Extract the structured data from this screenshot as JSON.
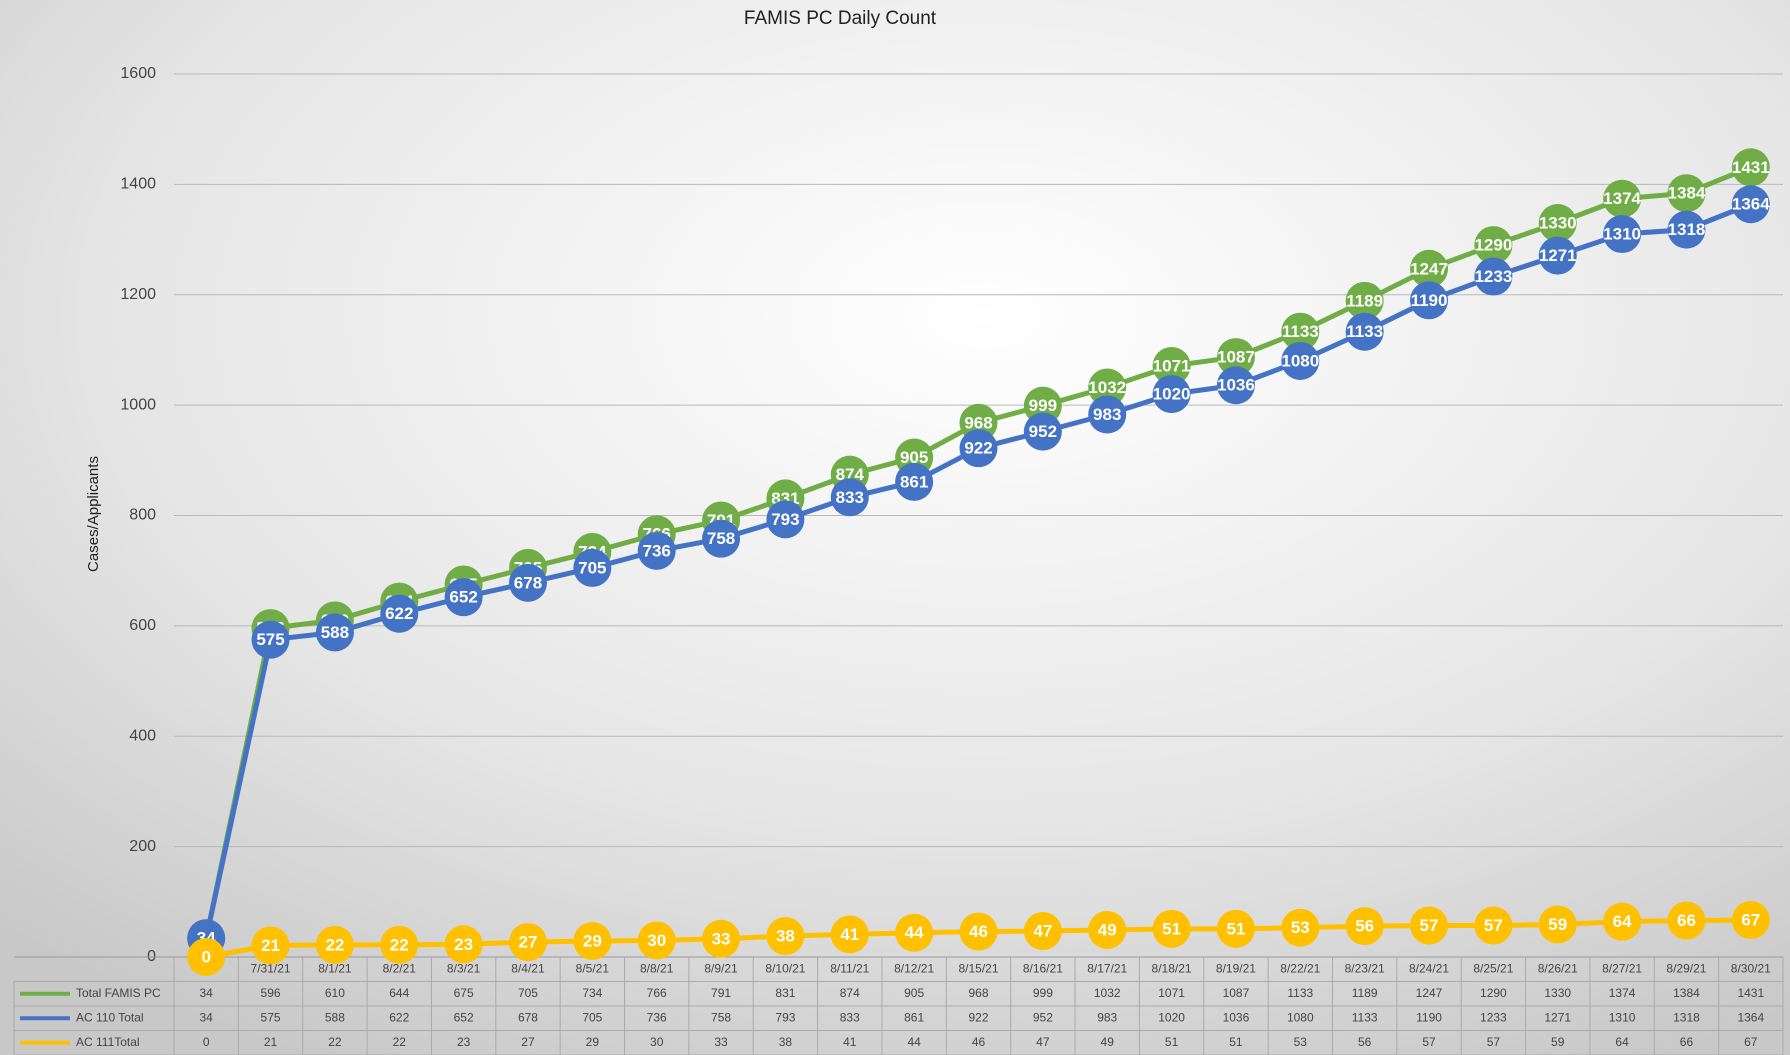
{
  "chart_data": {
    "type": "line",
    "title": "FAMIS PC Daily Count",
    "y_label": "Cases/Applicants",
    "categories": [
      null,
      "7/31/21",
      "8/1/21",
      "8/2/21",
      "8/3/21",
      "8/4/21",
      "8/5/21",
      "8/8/21",
      "8/9/21",
      "8/10/21",
      "8/11/21",
      "8/12/21",
      "8/15/21",
      "8/16/21",
      "8/17/21",
      "8/18/21",
      "8/19/21",
      "8/22/21",
      "8/23/21",
      "8/24/21",
      "8/25/21",
      "8/26/21",
      "8/27/21",
      "8/29/21",
      "8/30/21"
    ],
    "series": [
      {
        "name": "Total FAMIS PC",
        "color": "#70ad47",
        "values": [
          34,
          596,
          610,
          644,
          675,
          705,
          734,
          766,
          791,
          831,
          874,
          905,
          968,
          999,
          1032,
          1071,
          1087,
          1133,
          1189,
          1247,
          1290,
          1330,
          1374,
          1384,
          1431
        ]
      },
      {
        "name": "AC 110 Total",
        "color": "#4472c4",
        "values": [
          34,
          575,
          588,
          622,
          652,
          678,
          705,
          736,
          758,
          793,
          833,
          861,
          922,
          952,
          983,
          1020,
          1036,
          1080,
          1133,
          1190,
          1233,
          1271,
          1310,
          1318,
          1364
        ]
      },
      {
        "name": "AC 111Total",
        "color": "#ffc000",
        "values": [
          0,
          21,
          22,
          22,
          23,
          27,
          29,
          30,
          33,
          38,
          41,
          44,
          46,
          47,
          49,
          51,
          51,
          53,
          56,
          57,
          57,
          59,
          64,
          66,
          67
        ]
      }
    ],
    "ylim": [
      0,
      1600
    ],
    "yticks": [
      0,
      200,
      400,
      600,
      800,
      1000,
      1200,
      1400,
      1600
    ],
    "grid": true
  }
}
